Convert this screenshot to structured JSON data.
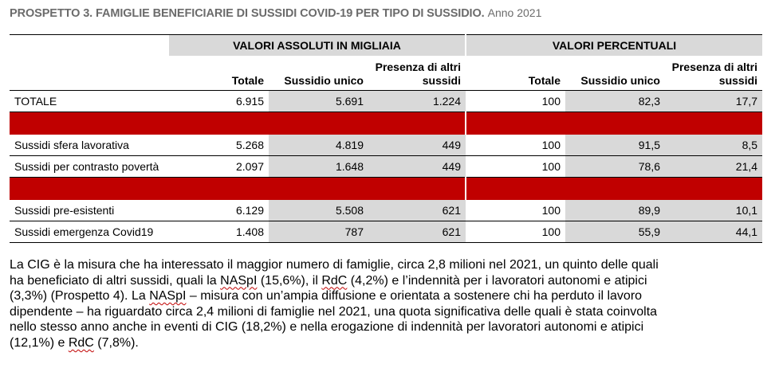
{
  "title": {
    "main": "PROSPETTO 3. FAMIGLIE BENEFICIARIE DI SUSSIDI COVID-19 PER TIPO DI SUSSIDIO.",
    "year": "Anno 2021"
  },
  "table": {
    "group_headers": [
      "VALORI ASSOLUTI IN MIGLIAIA",
      "VALORI PERCENTUALI"
    ],
    "columns": [
      "Totale",
      "Sussidio unico",
      "Presenza di altri sussidi",
      "Totale",
      "Sussidio unico",
      "Presenza di altri sussidi"
    ],
    "column_lines": {
      "c3_line1": "Presenza di altri",
      "c3_line2": "sussidi"
    },
    "rows": [
      {
        "label": "TOTALE",
        "values": [
          "6.915",
          "5.691",
          "1.224",
          "100",
          "82,3",
          "17,7"
        ]
      },
      {
        "label": "Sussidi sfera lavorativa",
        "values": [
          "5.268",
          "4.819",
          "449",
          "100",
          "91,5",
          "8,5"
        ]
      },
      {
        "label": "Sussidi per contrasto povertà",
        "values": [
          "2.097",
          "1.648",
          "449",
          "100",
          "78,6",
          "21,4"
        ]
      },
      {
        "label": "Sussidi pre-esistenti",
        "values": [
          "6.129",
          "5.508",
          "621",
          "100",
          "89,9",
          "10,1"
        ]
      },
      {
        "label": "Sussidi emergenza Covid19",
        "values": [
          "1.408",
          "787",
          "621",
          "100",
          "55,9",
          "44,1"
        ]
      }
    ],
    "highlight_color": "#c00000",
    "shade_color": "#d9d9d9"
  },
  "paragraph": {
    "line1": "La CIG è la misura che ha interessato il maggior numero di famiglie, circa 2,8 milioni nel 2021, un quinto delle quali",
    "line2_a": "ha beneficiato di altri sussidi, quali la ",
    "line2_naspi": "NASpI",
    "line2_b": " (15,6%), il ",
    "line2_rdc": "RdC",
    "line2_c": " (4,2%) e l’indennità per i lavoratori autonomi e atipici",
    "line3_a": "(3,3%) (Prospetto 4). La ",
    "line3_naspi": "NASpI",
    "line3_b": " – misura con un’ampia diffusione e orientata a sostenere chi ha perduto il lavoro",
    "line4": "dipendente – ha riguardato circa 2,4 milioni di famiglie nel 2021, una quota significativa delle quali è stata coinvolta",
    "line5": "nello stesso anno anche in eventi di CIG (18,2%) e nella erogazione di indennità per lavoratori autonomi e atipici",
    "line6_a": "(12,1%) e ",
    "line6_rdc": "RdC",
    "line6_b": " (7,8%)."
  }
}
